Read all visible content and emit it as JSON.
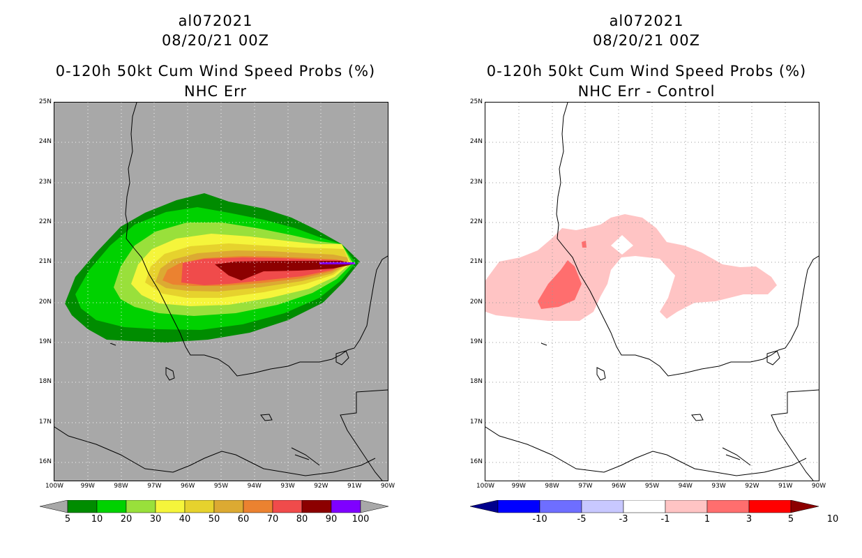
{
  "left_panel": {
    "storm_id": "al072021",
    "datetime": "08/20/21 00Z",
    "product": "0-120h 50kt Cum Wind Speed Probs (%)",
    "subtitle": "NHC Err",
    "colorbar_labels": [
      "5",
      "10",
      "20",
      "30",
      "40",
      "50",
      "60",
      "70",
      "80",
      "90",
      "100"
    ],
    "colorbar_colors": [
      "#008c00",
      "#00d200",
      "#99e03b",
      "#f5f53b",
      "#e6d22d",
      "#dcaa32",
      "#eb8230",
      "#f04b4b",
      "#8c0000",
      "#7f00ff"
    ],
    "background_color": "#a8a8a8"
  },
  "right_panel": {
    "storm_id": "al072021",
    "datetime": "08/20/21 00Z",
    "product": "0-120h 50kt Cum Wind Speed Probs (%)",
    "subtitle": "NHC Err - Control",
    "colorbar_labels": [
      "-10",
      "-5",
      "-3",
      "-1",
      "1",
      "3",
      "5",
      "10"
    ],
    "colorbar_colors": [
      "#00008c",
      "#0000ff",
      "#6e6eff",
      "#c8c8ff",
      "#ffffff",
      "#ffc4c4",
      "#ff6e6e",
      "#ff0000",
      "#8c0000"
    ],
    "background_color": "#ffffff"
  },
  "axes": {
    "lat_labels": [
      "25N",
      "24N",
      "23N",
      "22N",
      "21N",
      "20N",
      "19N",
      "18N",
      "17N",
      "16N"
    ],
    "lon_labels": [
      "100W",
      "99W",
      "98W",
      "97W",
      "96W",
      "95W",
      "94W",
      "93W",
      "92W",
      "91W",
      "90W"
    ],
    "lat_range": [
      15.55,
      25.0
    ],
    "lon_range": [
      -100,
      -90
    ]
  }
}
